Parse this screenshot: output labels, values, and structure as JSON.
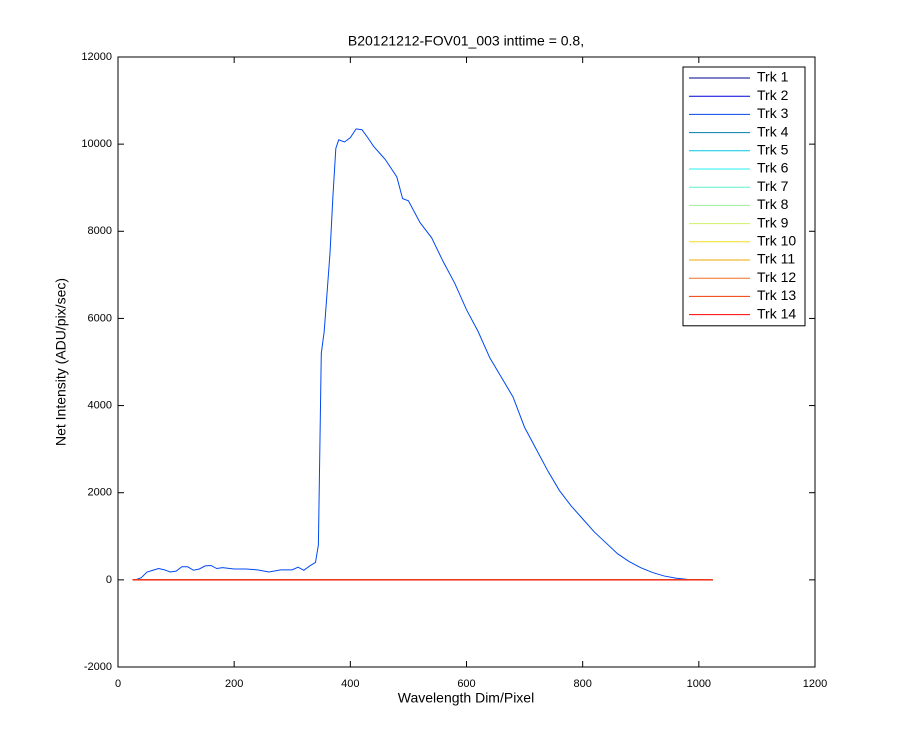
{
  "chart_data": {
    "type": "line",
    "title": "B20121212-FOV01_003 inttime = 0.8,",
    "x_label": "Wavelength Dim/Pixel",
    "y_label": "Net Intensity (ADU/pix/sec)",
    "xlim": [
      0,
      1200
    ],
    "ylim": [
      -2000,
      12000
    ],
    "xticks": [
      0,
      200,
      400,
      600,
      800,
      1000,
      1200
    ],
    "yticks": [
      -2000,
      0,
      2000,
      4000,
      6000,
      8000,
      10000,
      12000
    ],
    "legend": "northeast",
    "grid": false,
    "series": [
      {
        "name": "Trk 1",
        "color": "#000090",
        "x": [
          25,
          1024
        ],
        "values": [
          0,
          0
        ]
      },
      {
        "name": "Trk 2",
        "color": "#0000d8",
        "x": [
          25,
          1024
        ],
        "values": [
          0,
          0
        ]
      },
      {
        "name": "Trk 3",
        "color": "#0048f0",
        "x": [
          30,
          40,
          50,
          60,
          70,
          80,
          90,
          100,
          110,
          120,
          130,
          140,
          150,
          160,
          170,
          180,
          200,
          220,
          240,
          260,
          280,
          300,
          310,
          320,
          330,
          340,
          345,
          350,
          355,
          360,
          365,
          370,
          375,
          380,
          390,
          400,
          410,
          420,
          430,
          440,
          460,
          480,
          490,
          500,
          520,
          540,
          560,
          580,
          600,
          620,
          640,
          660,
          680,
          700,
          720,
          740,
          760,
          780,
          800,
          820,
          840,
          860,
          880,
          900,
          920,
          940,
          960,
          980,
          1000
        ],
        "values": [
          0,
          50,
          180,
          220,
          260,
          230,
          180,
          200,
          300,
          300,
          220,
          250,
          320,
          330,
          260,
          280,
          250,
          250,
          230,
          180,
          230,
          230,
          290,
          220,
          320,
          400,
          800,
          5200,
          5700,
          6600,
          7500,
          8800,
          9900,
          10100,
          10050,
          10150,
          10350,
          10330,
          10150,
          9950,
          9650,
          9250,
          8750,
          8700,
          8200,
          7850,
          7300,
          6800,
          6200,
          5700,
          5100,
          4650,
          4200,
          3500,
          3000,
          2500,
          2050,
          1700,
          1400,
          1100,
          850,
          600,
          420,
          280,
          170,
          90,
          40,
          10,
          0
        ]
      },
      {
        "name": "Trk 4",
        "color": "#0080b0",
        "x": [
          25,
          1024
        ],
        "values": [
          0,
          0
        ]
      },
      {
        "name": "Trk 5",
        "color": "#00c8e0",
        "x": [
          25,
          1024
        ],
        "values": [
          0,
          0
        ]
      },
      {
        "name": "Trk 6",
        "color": "#20f0f0",
        "x": [
          25,
          1024
        ],
        "values": [
          0,
          0
        ]
      },
      {
        "name": "Trk 7",
        "color": "#60f0d0",
        "x": [
          25,
          1024
        ],
        "values": [
          0,
          0
        ]
      },
      {
        "name": "Trk 8",
        "color": "#98f098",
        "x": [
          25,
          1024
        ],
        "values": [
          0,
          0
        ]
      },
      {
        "name": "Trk 9",
        "color": "#d0f060",
        "x": [
          25,
          1024
        ],
        "values": [
          0,
          0
        ]
      },
      {
        "name": "Trk 10",
        "color": "#f0e020",
        "x": [
          25,
          1024
        ],
        "values": [
          0,
          0
        ]
      },
      {
        "name": "Trk 11",
        "color": "#f0a800",
        "x": [
          25,
          1024
        ],
        "values": [
          0,
          0
        ]
      },
      {
        "name": "Trk 12",
        "color": "#f07020",
        "x": [
          25,
          1024
        ],
        "values": [
          0,
          0
        ]
      },
      {
        "name": "Trk 13",
        "color": "#f03800",
        "x": [
          25,
          1024
        ],
        "values": [
          0,
          0
        ]
      },
      {
        "name": "Trk 14",
        "color": "#ff0000",
        "x": [
          25,
          1024
        ],
        "values": [
          0,
          0
        ]
      }
    ]
  }
}
